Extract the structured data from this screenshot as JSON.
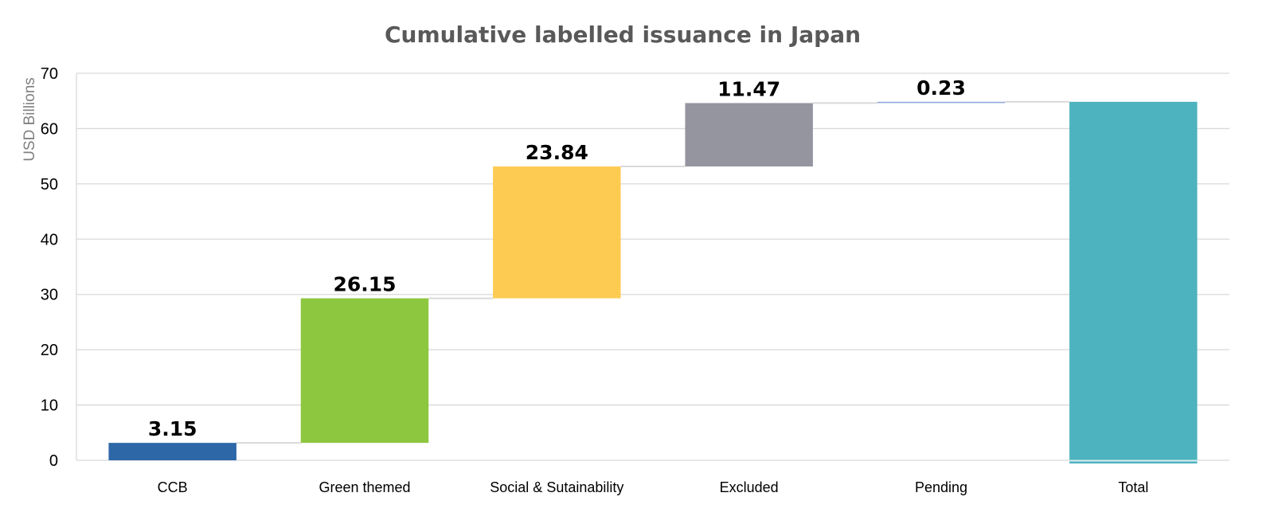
{
  "chart_data": {
    "type": "bar",
    "subtype": "waterfall",
    "title": "Cumulative labelled issuance in Japan",
    "ylabel": "USD Billions",
    "ylim": [
      0,
      70
    ],
    "yticks": [
      0,
      10,
      20,
      30,
      40,
      50,
      60,
      70
    ],
    "grid": true,
    "categories": [
      "CCB",
      "Green themed",
      "Social & Sutainability",
      "Excluded",
      "Pending",
      "Total"
    ],
    "values": [
      3.15,
      26.15,
      23.84,
      11.47,
      0.23,
      64.84
    ],
    "data_labels": [
      "3.15",
      "26.15",
      "23.84",
      "11.47",
      "0.23",
      ""
    ],
    "total_index": 5,
    "colors": [
      "#2e67a8",
      "#8dc63f",
      "#fecb52",
      "#9595a0",
      "#8ea9db",
      "#4db3be"
    ]
  }
}
